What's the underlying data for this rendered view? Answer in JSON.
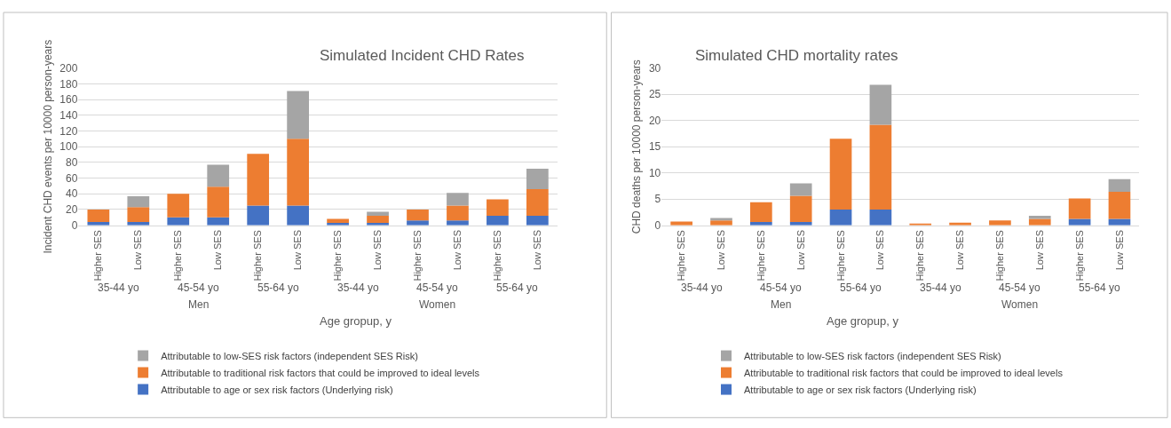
{
  "chart_data": [
    {
      "type": "bar",
      "stacked": true,
      "title": "Simulated Incident CHD Rates",
      "xlabel": "Age gropup, y",
      "ylabel": "Incident CHD events per 10000 person-years",
      "categories": [
        "Higher SES",
        "Low SES",
        "Higher SES",
        "Low SES",
        "Higher SES",
        "Low SES",
        "Higher SES",
        "Low SES",
        "Higher SES",
        "Low SES",
        "Higher SES",
        "Low SES"
      ],
      "annotations": [
        "35-44 yo",
        "45-54 yo",
        "55-64 yo",
        "35-44 yo",
        "45-54 yo",
        "55-64 yo",
        "Men",
        "Women"
      ],
      "ylim": [
        0,
        200
      ],
      "yticks": [
        0,
        20,
        40,
        60,
        80,
        100,
        120,
        140,
        160,
        180,
        200
      ],
      "grid": "y",
      "legend": "bottom",
      "series": [
        {
          "name": "Attributable to age or sex risk factors (Underlying risk)",
          "color": "#4472c4",
          "values": [
            4,
            4,
            10,
            10,
            25,
            25,
            3,
            3,
            6,
            6,
            12,
            12
          ]
        },
        {
          "name": "Attributable to traditional risk factors that could be improved to ideal levels",
          "color": "#ed7d31",
          "values": [
            16,
            19,
            30,
            39,
            66,
            85,
            5,
            9,
            14,
            19,
            21,
            34
          ]
        },
        {
          "name": "Attributable to low-SES risk factors (independent SES Risk)",
          "color": "#a5a5a5",
          "values": [
            0,
            14,
            0,
            28,
            0,
            61,
            0,
            5,
            0,
            16,
            0,
            26
          ]
        }
      ]
    },
    {
      "type": "bar",
      "stacked": true,
      "title": "Simulated CHD mortality rates",
      "xlabel": "Age gropup, y",
      "ylabel": "CHD deaths per 10000 person-years",
      "categories": [
        "Higher SES",
        "Low SES",
        "Higher SES",
        "Low SES",
        "Higher SES",
        "Low SES",
        "Higher SES",
        "Low SES",
        "Higher SES",
        "Low SES",
        "Higher SES",
        "Low SES"
      ],
      "annotations": [
        "35-44 yo",
        "45-54 yo",
        "55-64 yo",
        "35-44 yo",
        "45-54 yo",
        "55-64 yo",
        "Men",
        "Women"
      ],
      "ylim": [
        0,
        30
      ],
      "yticks": [
        0,
        5,
        10,
        15,
        20,
        25,
        30
      ],
      "grid": "y",
      "legend": "bottom",
      "series": [
        {
          "name": "Attributable to age or sex risk factors (Underlying risk)",
          "color": "#4472c4",
          "values": [
            null,
            null,
            0.6,
            0.6,
            3,
            3,
            0,
            0,
            null,
            null,
            1.2,
            1.2
          ]
        },
        {
          "name": "Attributable to traditional risk factors that could be improved to ideal levels",
          "color": "#ed7d31",
          "values": [
            0.7,
            0.9,
            3.8,
            5,
            13.5,
            16.2,
            0.2,
            0.5,
            0.9,
            1.2,
            3.9,
            5.2
          ]
        },
        {
          "name": "Attributable to low-SES risk factors (independent SES Risk)",
          "color": "#a5a5a5",
          "values": [
            0,
            0.5,
            0,
            2.4,
            0,
            7.6,
            0,
            0,
            0,
            0.6,
            0,
            2.4
          ]
        }
      ]
    }
  ]
}
